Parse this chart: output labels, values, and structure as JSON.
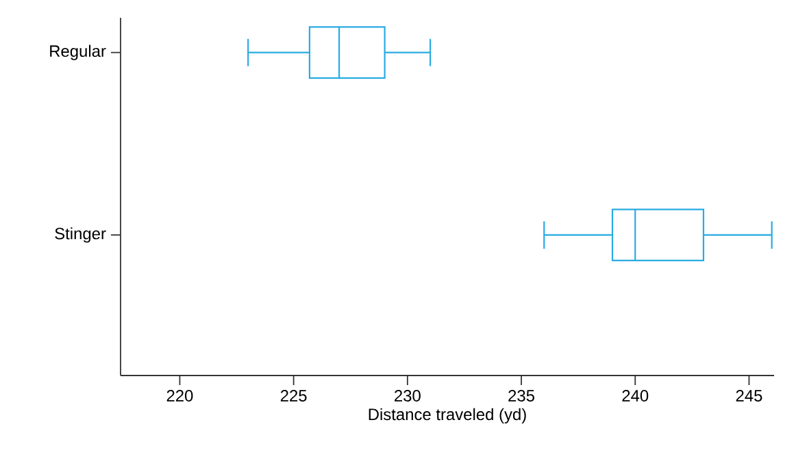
{
  "chart_data": {
    "type": "box",
    "orientation": "horizontal",
    "xlabel": "Distance traveled (yd)",
    "categories": [
      "Regular",
      "Stinger"
    ],
    "boxes": [
      {
        "low": 223,
        "q1": 225.7,
        "median": 227,
        "q3": 229,
        "high": 231
      },
      {
        "low": 236,
        "q1": 239,
        "median": 240,
        "q3": 243,
        "high": 246
      }
    ],
    "color": "#29abe2",
    "xlim": [
      217.4,
      246.1
    ],
    "xticks": [
      220,
      225,
      230,
      235,
      240,
      245
    ]
  }
}
